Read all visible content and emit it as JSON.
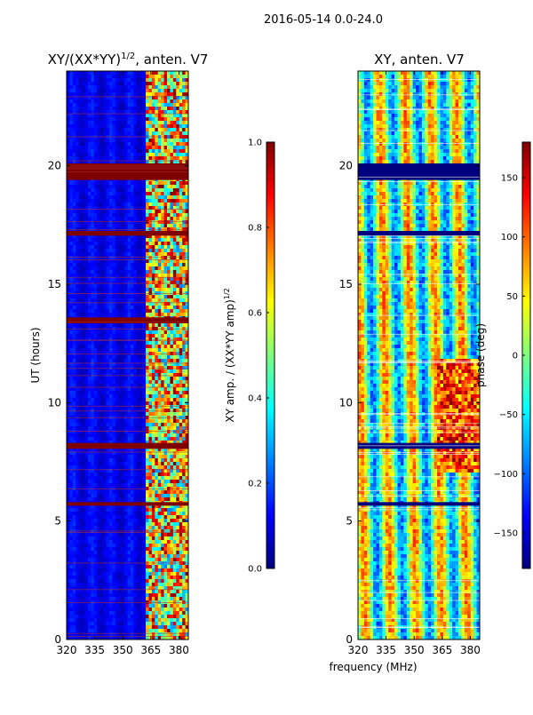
{
  "figure": {
    "suptitle": "2016-05-14 0.0-24.0",
    "xlabel_shared": "frequency (MHz)"
  },
  "colors": {
    "jet": [
      "#00007f",
      "#0000ff",
      "#007fff",
      "#00ffff",
      "#7fff7f",
      "#ffff00",
      "#ff7f00",
      "#ff0000",
      "#7f0000"
    ],
    "flag_band_left": "#7f0000",
    "flag_band_right": "#00007f"
  },
  "chart_data": [
    {
      "type": "heatmap",
      "id": "left",
      "title": "XY/(XX*YY)^1/2, anten. V7",
      "title_main": "XY/(XX*YY)",
      "title_sup": "1/2",
      "title_tail": ", anten. V7",
      "xlabel": "",
      "ylabel": "UT (hours)",
      "xlim": [
        320,
        385
      ],
      "ylim": [
        0,
        24
      ],
      "xticks": [
        "320",
        "335",
        "350",
        "365",
        "380"
      ],
      "xtick_values": [
        320,
        335,
        350,
        365,
        380
      ],
      "yticks": [
        "0",
        "5",
        "10",
        "15",
        "20"
      ],
      "ytick_values": [
        0,
        5,
        10,
        15,
        20
      ],
      "flagged_bands_hours": [
        [
          19.4,
          20.1
        ],
        [
          17.05,
          17.25
        ],
        [
          13.35,
          13.6
        ],
        [
          8.05,
          8.3
        ],
        [
          5.65,
          5.8
        ]
      ],
      "colorbar": {
        "label": "XY amp. / (XX*YY amp)^1/2",
        "label_main": "XY amp. / (XX*YY amp)",
        "label_sup": "1/2",
        "range": [
          0.0,
          1.0
        ],
        "ticks": [
          "0.0",
          "0.2",
          "0.4",
          "0.6",
          "0.8",
          "1.0"
        ],
        "tick_values": [
          0.0,
          0.2,
          0.4,
          0.6,
          0.8,
          1.0
        ]
      }
    },
    {
      "type": "heatmap",
      "id": "right",
      "title": "XY, anten. V7",
      "xlabel": "frequency (MHz)",
      "ylabel": "",
      "xlim": [
        320,
        385
      ],
      "ylim": [
        0,
        24
      ],
      "xticks": [
        "320",
        "335",
        "350",
        "365",
        "380"
      ],
      "xtick_values": [
        320,
        335,
        350,
        365,
        380
      ],
      "yticks": [
        "0",
        "5",
        "10",
        "15",
        "20"
      ],
      "ytick_values": [
        0,
        5,
        10,
        15,
        20
      ],
      "flagged_bands_hours": [
        [
          19.4,
          20.1
        ],
        [
          17.05,
          17.25
        ],
        [
          8.05,
          8.3
        ],
        [
          5.65,
          5.8
        ]
      ],
      "colorbar": {
        "label": "phase (deg)",
        "range": [
          -180,
          180
        ],
        "ticks": [
          "−150",
          "−100",
          "−50",
          "0",
          "50",
          "100",
          "150"
        ],
        "tick_values": [
          -150,
          -100,
          -50,
          0,
          50,
          100,
          150
        ]
      }
    }
  ]
}
